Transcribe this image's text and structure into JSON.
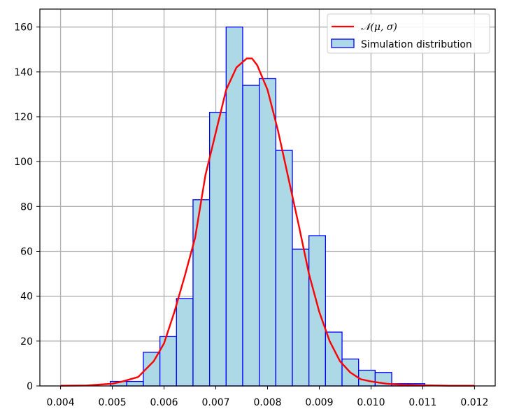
{
  "chart_data": {
    "type": "bar",
    "grid": true,
    "xlim": [
      0.0036,
      0.0124
    ],
    "ylim": [
      0,
      168
    ],
    "x_ticks": [
      0.004,
      0.005,
      0.006,
      0.007,
      0.008,
      0.009,
      0.01,
      0.011,
      0.012
    ],
    "x_tick_labels": [
      "0.004",
      "0.005",
      "0.006",
      "0.007",
      "0.008",
      "0.009",
      "0.010",
      "0.011",
      "0.012"
    ],
    "y_ticks": [
      0,
      20,
      40,
      60,
      80,
      100,
      120,
      140,
      160
    ],
    "y_tick_labels": [
      "0",
      "20",
      "40",
      "60",
      "80",
      "100",
      "120",
      "140",
      "160"
    ],
    "legend_position": "top-right",
    "histogram": {
      "name": "Simulation distribution",
      "fill_color": "#add8e6",
      "edge_color": "#0000ff",
      "bin_edges": [
        0.00496,
        0.00528,
        0.0056,
        0.00592,
        0.00624,
        0.00656,
        0.00688,
        0.0072,
        0.00752,
        0.00784,
        0.00816,
        0.00848,
        0.0088,
        0.00912,
        0.00944,
        0.00976,
        0.01008,
        0.0104,
        0.01072,
        0.01104
      ],
      "counts": [
        2,
        2,
        15,
        22,
        39,
        83,
        122,
        160,
        134,
        137,
        105,
        61,
        67,
        24,
        12,
        7,
        6,
        1,
        1
      ]
    },
    "curve": {
      "name": "𝒩(μ, σ)",
      "color": "#ff0000",
      "x": [
        0.004,
        0.0045,
        0.005,
        0.0052,
        0.0055,
        0.0058,
        0.006,
        0.0062,
        0.0064,
        0.0066,
        0.0068,
        0.007,
        0.0072,
        0.0074,
        0.0076,
        0.0077,
        0.0078,
        0.008,
        0.0082,
        0.0084,
        0.0086,
        0.0088,
        0.009,
        0.0092,
        0.0094,
        0.0096,
        0.0098,
        0.01,
        0.0103,
        0.0106,
        0.011,
        0.0115,
        0.012
      ],
      "y": [
        0.1,
        0.2,
        1,
        2,
        4,
        11,
        19,
        33,
        49,
        66,
        94,
        113,
        132,
        142,
        146,
        146,
        143,
        132,
        114,
        93,
        72,
        50,
        33,
        20,
        11,
        6,
        3,
        2,
        1,
        0.5,
        0.3,
        0.1,
        0.1
      ]
    }
  }
}
